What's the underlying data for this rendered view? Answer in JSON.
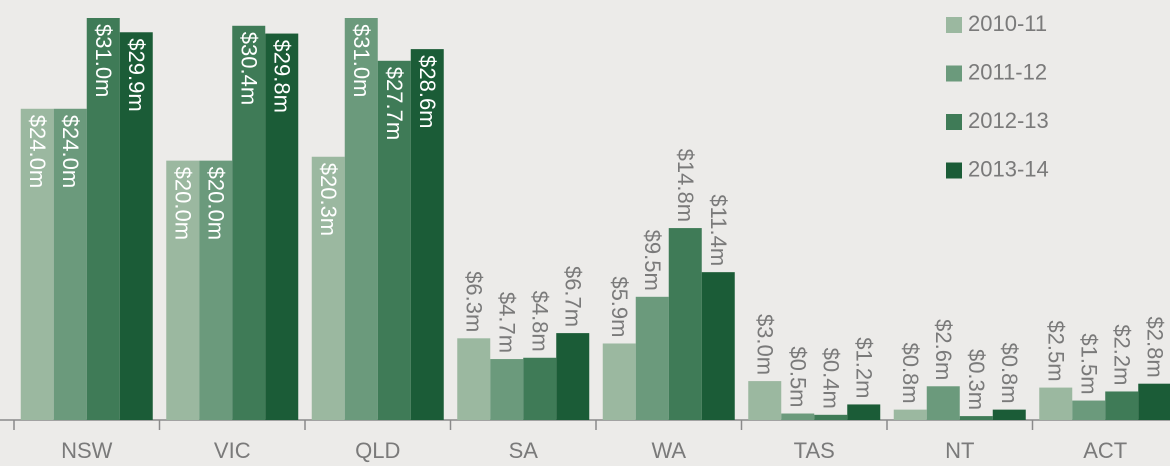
{
  "chart_data": {
    "type": "bar",
    "categories": [
      "NSW",
      "VIC",
      "QLD",
      "SA",
      "WA",
      "TAS",
      "NT",
      "ACT"
    ],
    "series": [
      {
        "name": "2010-11",
        "color": "#9bb8a0",
        "values": [
          24.0,
          20.0,
          20.3,
          6.3,
          5.9,
          3.0,
          0.8,
          2.5
        ],
        "value_labels": [
          "$24.0m",
          "$20.0m",
          "$20.3m",
          "$6.3m",
          "$5.9m",
          "$3.0m",
          "$0.8m",
          "$2.5m"
        ]
      },
      {
        "name": "2011-12",
        "color": "#6b9a7c",
        "values": [
          24.0,
          20.0,
          31.0,
          4.7,
          9.5,
          0.5,
          2.6,
          1.5
        ],
        "value_labels": [
          "$24.0m",
          "$20.0m",
          "$31.0m",
          "$4.7m",
          "$9.5m",
          "$0.5m",
          "$2.6m",
          "$1.5m"
        ]
      },
      {
        "name": "2012-13",
        "color": "#3f7b57",
        "values": [
          31.0,
          30.4,
          27.7,
          4.8,
          14.8,
          0.4,
          0.3,
          2.2
        ],
        "value_labels": [
          "$31.0m",
          "$30.4m",
          "$27.7m",
          "$4.8m",
          "$14.8m",
          "$0.4m",
          "$0.3m",
          "$2.2m"
        ]
      },
      {
        "name": "2013-14",
        "color": "#1b5c37",
        "values": [
          29.9,
          29.8,
          28.6,
          6.7,
          11.4,
          1.2,
          0.8,
          2.8
        ],
        "value_labels": [
          "$29.9m",
          "$29.8m",
          "$28.6m",
          "$6.7m",
          "$11.4m",
          "$1.2m",
          "$0.8m",
          "$2.8m"
        ]
      }
    ],
    "legend": "top-right"
  }
}
